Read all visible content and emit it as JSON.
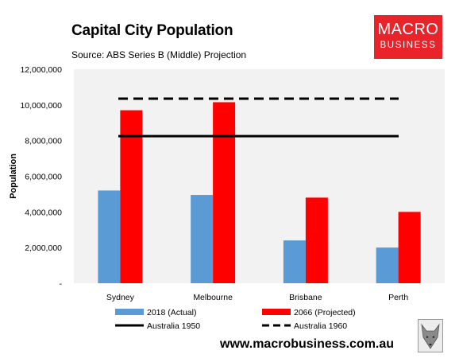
{
  "header": {
    "title": "Capital City Population",
    "subtitle": "Source: ABS Series B (Middle) Projection"
  },
  "logo": {
    "line1": "MACRO",
    "line2": "BUSINESS",
    "bg_color": "#e8242a"
  },
  "footer": {
    "website": "www.macrobusiness.com.au",
    "mascot_icon": "wolf-head-icon"
  },
  "chart_data": {
    "type": "bar",
    "title": "Capital City Population",
    "subtitle": "Source: ABS Series B (Middle) Projection",
    "xlabel": "",
    "ylabel": "Population",
    "ylim": [
      0,
      12000000
    ],
    "yticks": [
      0,
      2000000,
      4000000,
      6000000,
      8000000,
      10000000,
      12000000
    ],
    "ytick_labels": [
      "-",
      "2,000,000",
      "4,000,000",
      "6,000,000",
      "8,000,000",
      "10,000,000",
      "12,000,000"
    ],
    "categories": [
      "Sydney",
      "Melbourne",
      "Brisbane",
      "Perth"
    ],
    "series": [
      {
        "name": "2018 (Actual)",
        "color": "#5b9bd5",
        "values": [
          5200000,
          4950000,
          2400000,
          2000000
        ]
      },
      {
        "name": "2066 (Projected)",
        "color": "#ff0000",
        "values": [
          9700000,
          10150000,
          4800000,
          4000000
        ]
      }
    ],
    "reference_lines": [
      {
        "name": "Australia 1950",
        "value": 8250000,
        "style": "solid",
        "color": "#000000"
      },
      {
        "name": "Australia 1960",
        "value": 10350000,
        "style": "dashed",
        "color": "#000000"
      }
    ],
    "grid": false,
    "plot_background": "#f2f2f2",
    "legend_position": "bottom"
  }
}
